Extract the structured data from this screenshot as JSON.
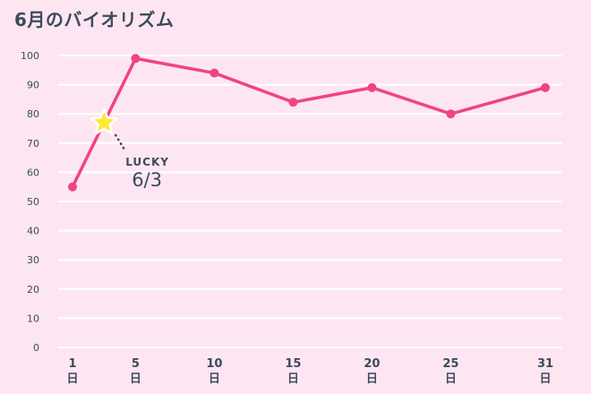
{
  "chart_data": {
    "type": "line",
    "title": "6月のバイオリズム",
    "x": [
      1,
      5,
      10,
      15,
      20,
      25,
      31
    ],
    "x_tick_labels": [
      {
        "num": "1",
        "unit": "日"
      },
      {
        "num": "5",
        "unit": "日"
      },
      {
        "num": "10",
        "unit": "日"
      },
      {
        "num": "15",
        "unit": "日"
      },
      {
        "num": "20",
        "unit": "日"
      },
      {
        "num": "25",
        "unit": "日"
      },
      {
        "num": "31",
        "unit": "日"
      }
    ],
    "xlim": [
      1,
      31
    ],
    "y_ticks": [
      0,
      10,
      20,
      30,
      40,
      50,
      60,
      70,
      80,
      90,
      100
    ],
    "ylim": [
      0,
      100
    ],
    "series": [
      {
        "values": [
          55,
          99,
          94,
          84,
          89,
          80,
          89
        ]
      }
    ],
    "annotation": {
      "x": 3,
      "y": 77,
      "label": "LUCKY",
      "value": "6/3",
      "marker": "star-icon"
    },
    "grid": true,
    "colors": {
      "line": "#f0447f",
      "star": "#fde935",
      "grid": "#ffffff",
      "text": "#3d4a5a"
    }
  }
}
